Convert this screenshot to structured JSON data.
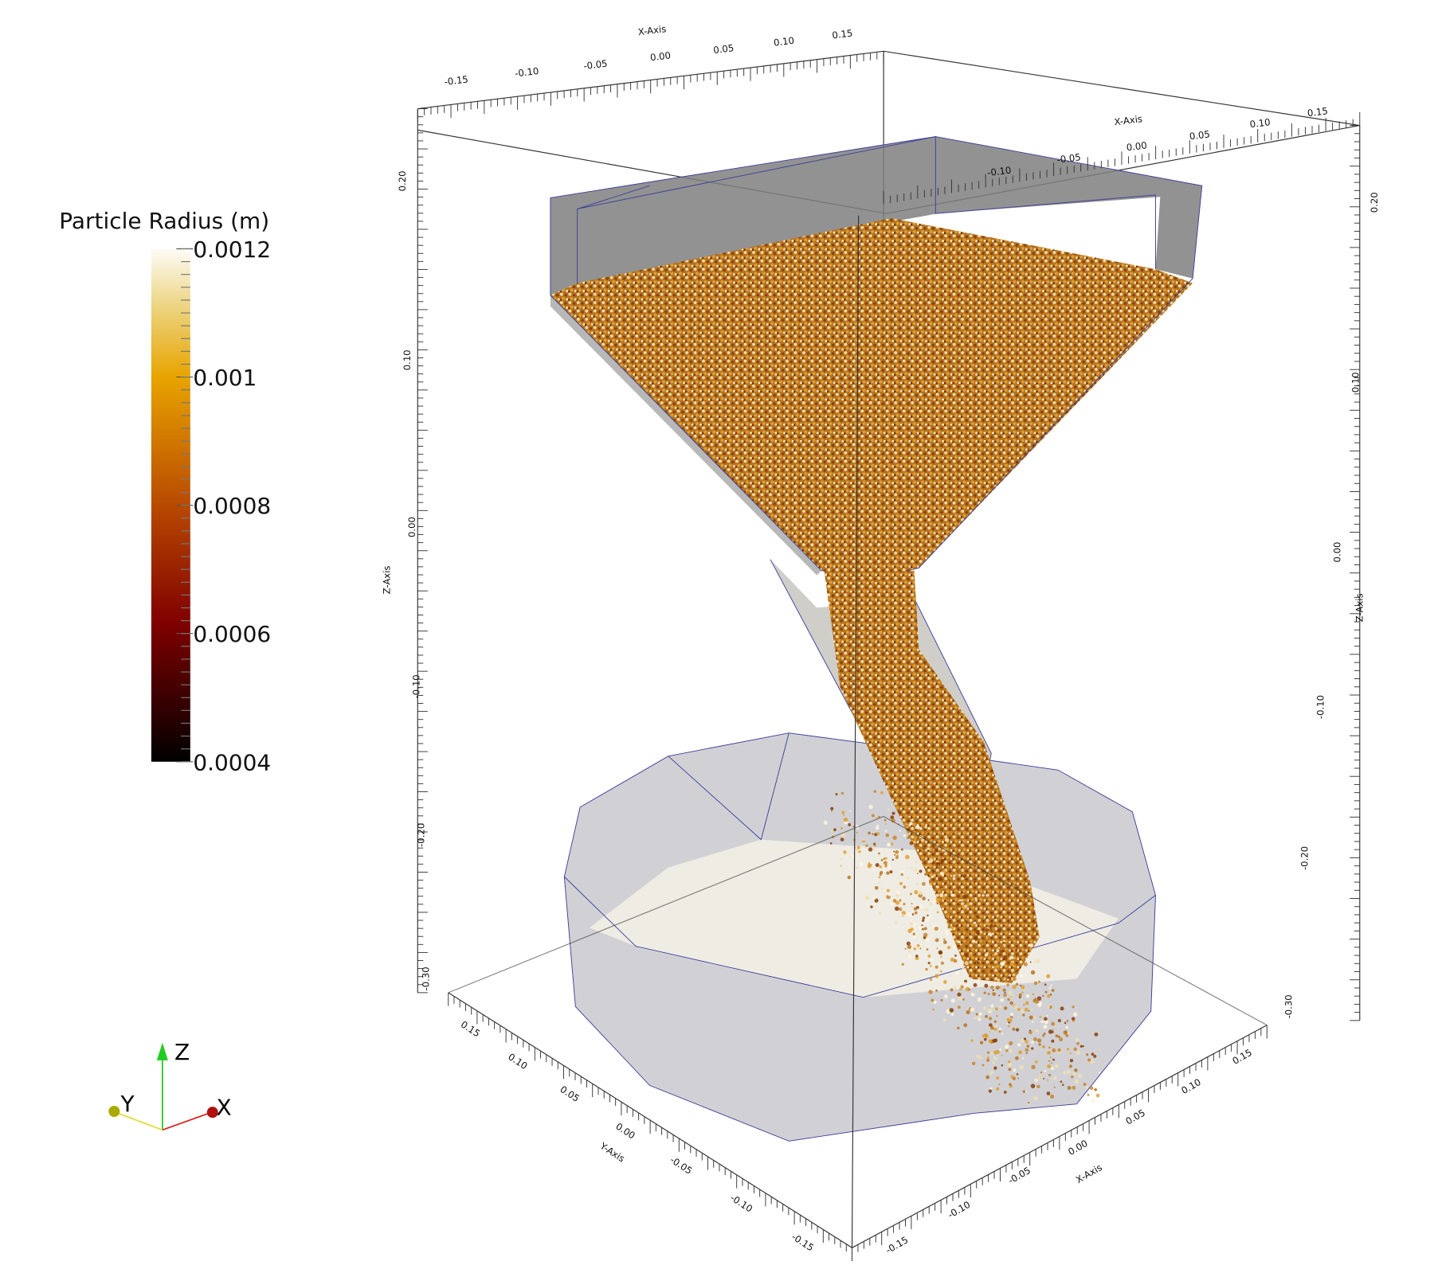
{
  "color_legend": {
    "title": "Particle Radius (m)",
    "labels": [
      "0.0012",
      "0.001",
      "0.0008",
      "0.0006",
      "0.0004"
    ]
  },
  "axes": {
    "x_back": {
      "title": "X-Axis",
      "ticks": [
        "-0.15",
        "-0.10",
        "-0.05",
        "0.00",
        "0.05",
        "0.10",
        "0.15"
      ]
    },
    "x_right": {
      "title": "X-Axis",
      "ticks": [
        "-0.10",
        "-0.05",
        "0.00",
        "0.05",
        "0.10",
        "0.15"
      ]
    },
    "z_left": {
      "title": "Z-Axis",
      "ticks": [
        "0.20",
        "0.10",
        "0.00",
        "-0.10",
        "-0.20",
        "-0.30"
      ]
    },
    "z_right": {
      "title": "Z-Axis",
      "ticks": [
        "0.20",
        "0.10",
        "0.00",
        "-0.10",
        "-0.20",
        "-0.30"
      ]
    },
    "y_front": {
      "title": "Y-Axis",
      "ticks": [
        "0.15",
        "0.10",
        "0.05",
        "0.00",
        "-0.05",
        "-0.10",
        "-0.15"
      ]
    },
    "x_front": {
      "title": "X-Axis",
      "ticks": [
        "-0.15",
        "-0.10",
        "-0.05",
        "0.00",
        "0.05",
        "0.10",
        "0.15"
      ]
    }
  },
  "orientation_axes": {
    "x": "X",
    "y": "Y",
    "z": "Z"
  }
}
